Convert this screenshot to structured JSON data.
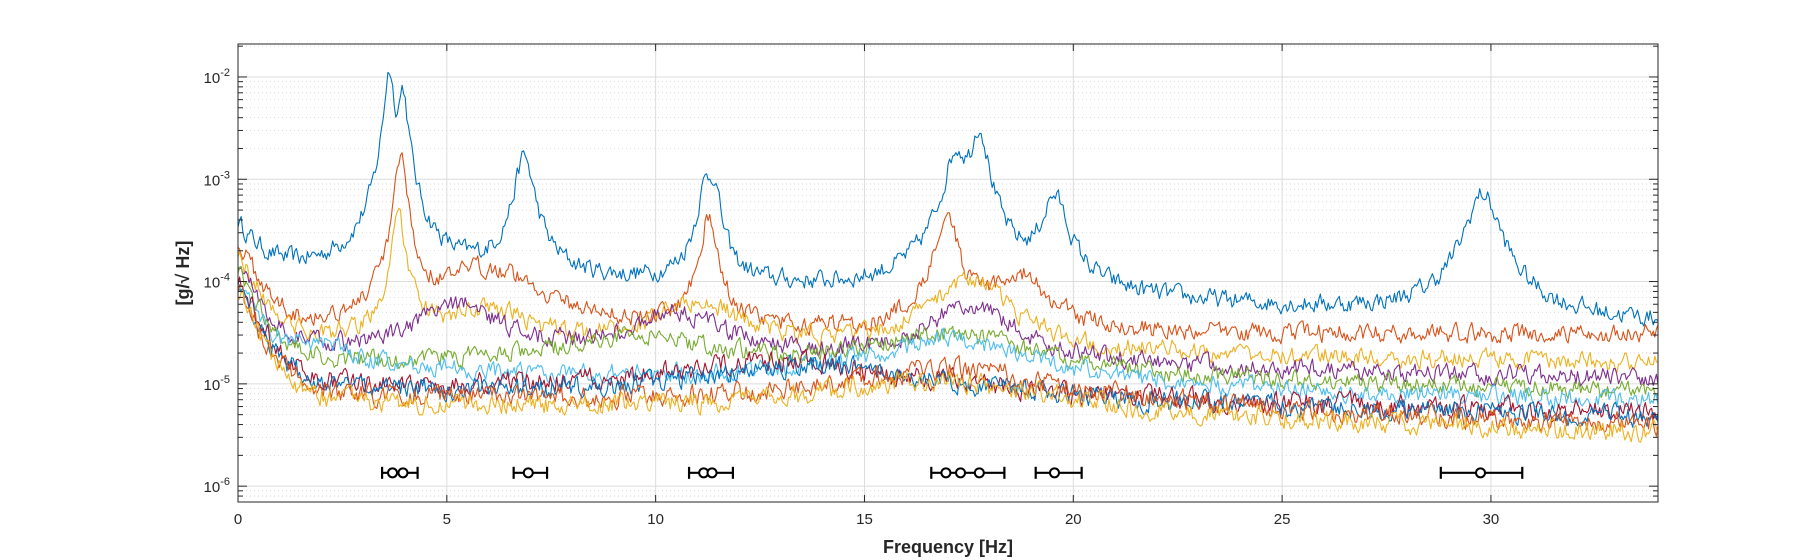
{
  "chart_data": {
    "type": "line",
    "title": "",
    "xlabel": "Frequency [Hz]",
    "ylabel": "[g/√ Hz]",
    "xlim": [
      0,
      34
    ],
    "ylim": [
      7e-07,
      0.021
    ],
    "yscale": "log",
    "grid": true,
    "minor_grid": true,
    "xticks": [
      0,
      5,
      10,
      15,
      20,
      25,
      30
    ],
    "xtick_labels": [
      "0",
      "5",
      "10",
      "15",
      "20",
      "25",
      "30"
    ],
    "yticks": [
      {
        "value": 1e-06,
        "base": "10",
        "exp": "-6"
      },
      {
        "value": 1e-05,
        "base": "10",
        "exp": "-5"
      },
      {
        "value": 0.0001,
        "base": "10",
        "exp": "-4"
      },
      {
        "value": 0.001,
        "base": "10",
        "exp": "-3"
      },
      {
        "value": 0.01,
        "base": "10",
        "exp": "-2"
      }
    ],
    "series": [
      {
        "color": "#0072BD",
        "base": 0.00013,
        "start": 0.00038,
        "tail": 3.8e-05,
        "noise": 0.08,
        "peaks": [
          [
            3.62,
            0.0115,
            0.1
          ],
          [
            3.95,
            0.007,
            0.1
          ],
          [
            6.85,
            0.0016,
            0.2
          ],
          [
            11.2,
            0.0008,
            0.18
          ],
          [
            11.4,
            0.0007,
            0.12
          ],
          [
            17.2,
            0.0017,
            0.25
          ],
          [
            17.75,
            0.003,
            0.18
          ],
          [
            19.55,
            0.00062,
            0.28
          ],
          [
            29.8,
            0.0007,
            0.35
          ]
        ]
      },
      {
        "color": "#D95319",
        "base": 3e-05,
        "start": 0.00025,
        "tail": 3e-05,
        "noise": 0.08,
        "peaks": [
          [
            3.9,
            0.0016,
            0.12
          ],
          [
            6.0,
            0.00012,
            1.2
          ],
          [
            11.25,
            0.0004,
            0.18
          ],
          [
            16.95,
            0.00048,
            0.22
          ],
          [
            18.7,
            0.0001,
            0.6
          ]
        ]
      },
      {
        "color": "#EDB120",
        "base": 2.6e-05,
        "start": 0.0002,
        "tail": 1.6e-05,
        "noise": 0.08,
        "peaks": [
          [
            3.85,
            0.0004,
            0.15
          ],
          [
            6.0,
            4e-05,
            1.0
          ],
          [
            11.0,
            5e-05,
            1.0
          ],
          [
            17.5,
            0.0001,
            0.8
          ]
        ]
      },
      {
        "color": "#7E2F8E",
        "base": 2.2e-05,
        "start": 0.00016,
        "tail": 1.1e-05,
        "noise": 0.08,
        "peaks": [
          [
            5.3,
            5e-05,
            0.9
          ],
          [
            10.5,
            4e-05,
            1.1
          ],
          [
            17.5,
            5e-05,
            1.0
          ]
        ]
      },
      {
        "color": "#77AC30",
        "base": 1.7e-05,
        "start": 0.00014,
        "tail": 8e-06,
        "noise": 0.08,
        "peaks": [
          [
            9.5,
            2.2e-05,
            2.0
          ],
          [
            17.0,
            2.4e-05,
            2.0
          ]
        ]
      },
      {
        "color": "#4DBEEE",
        "base": 1.4e-05,
        "start": 0.00012,
        "tail": 6.5e-06,
        "noise": 0.08,
        "peaks": [
          [
            1.8,
            1.8e-05,
            1.0
          ],
          [
            17.0,
            2.2e-05,
            2.0
          ]
        ]
      },
      {
        "color": "#A2142F",
        "base": 1e-05,
        "start": 0.00011,
        "tail": 5e-06,
        "noise": 0.09,
        "peaks": [
          [
            13.0,
            1.3e-05,
            3.0
          ]
        ]
      },
      {
        "color": "#0072BD",
        "base": 9e-06,
        "start": 0.0001,
        "tail": 4.5e-06,
        "noise": 0.09,
        "peaks": [
          [
            14.0,
            1.2e-05,
            3.0
          ]
        ]
      },
      {
        "color": "#D95319",
        "base": 8e-06,
        "start": 9e-05,
        "tail": 3.8e-06,
        "noise": 0.09,
        "peaks": [
          [
            17.0,
            1.1e-05,
            3.0
          ]
        ]
      },
      {
        "color": "#EDB120",
        "base": 6.8e-06,
        "start": 8e-05,
        "tail": 3.2e-06,
        "noise": 0.09,
        "peaks": [
          [
            16.5,
            8.5e-06,
            3.0
          ]
        ]
      }
    ],
    "intervals": [
      {
        "low": 3.45,
        "high": 4.3,
        "centers": [
          3.7,
          3.95
        ]
      },
      {
        "low": 6.6,
        "high": 7.4,
        "centers": [
          6.95
        ]
      },
      {
        "low": 10.8,
        "high": 11.85,
        "centers": [
          11.15,
          11.35
        ]
      },
      {
        "low": 16.6,
        "high": 18.35,
        "centers": [
          16.95,
          17.3,
          17.75
        ]
      },
      {
        "low": 19.1,
        "high": 20.2,
        "centers": [
          19.55
        ]
      },
      {
        "low": 28.8,
        "high": 30.75,
        "centers": [
          29.75
        ]
      }
    ],
    "interval_y": 1.35e-06
  }
}
